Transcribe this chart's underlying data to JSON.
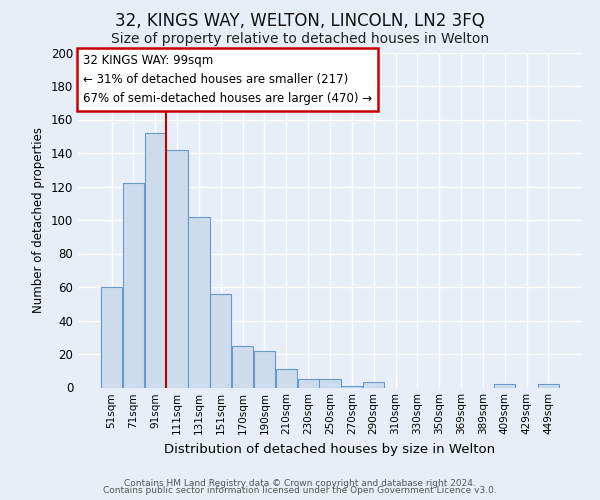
{
  "title": "32, KINGS WAY, WELTON, LINCOLN, LN2 3FQ",
  "subtitle": "Size of property relative to detached houses in Welton",
  "xlabel": "Distribution of detached houses by size in Welton",
  "ylabel": "Number of detached properties",
  "bar_labels": [
    "51sqm",
    "71sqm",
    "91sqm",
    "111sqm",
    "131sqm",
    "151sqm",
    "170sqm",
    "190sqm",
    "210sqm",
    "230sqm",
    "250sqm",
    "270sqm",
    "290sqm",
    "310sqm",
    "330sqm",
    "350sqm",
    "369sqm",
    "389sqm",
    "409sqm",
    "429sqm",
    "449sqm"
  ],
  "bar_heights": [
    60,
    122,
    152,
    142,
    102,
    56,
    25,
    22,
    11,
    5,
    5,
    1,
    3,
    0,
    0,
    0,
    0,
    0,
    2,
    0,
    2
  ],
  "bar_color": "#ccdcec",
  "bar_edge_color": "#6699cc",
  "vline_color": "#bb0000",
  "annotation_title": "32 KINGS WAY: 99sqm",
  "annotation_line1": "← 31% of detached houses are smaller (217)",
  "annotation_line2": "67% of semi-detached houses are larger (470) →",
  "annotation_box_color": "#ffffff",
  "annotation_box_edge": "#cc0000",
  "footer1": "Contains HM Land Registry data © Crown copyright and database right 2024.",
  "footer2": "Contains public sector information licensed under the Open Government Licence v3.0.",
  "ylim": [
    0,
    200
  ],
  "yticks": [
    0,
    20,
    40,
    60,
    80,
    100,
    120,
    140,
    160,
    180,
    200
  ],
  "bg_color": "#e8eef8",
  "plot_bg_color": "#e8eef8",
  "grid_color": "#ffffff",
  "title_fontsize": 12,
  "subtitle_fontsize": 10,
  "vline_bar_index": 2
}
